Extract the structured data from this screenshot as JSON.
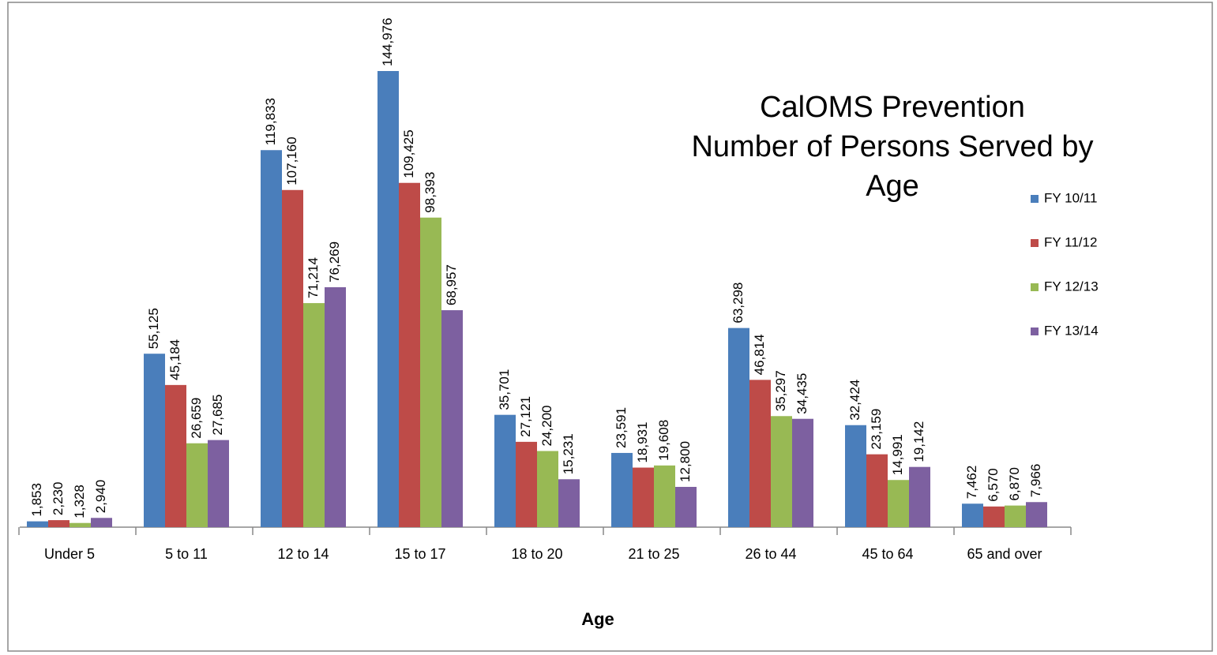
{
  "chart_data": {
    "type": "bar",
    "title": [
      "CalOMS Prevention",
      "Number of Persons Served by",
      "Age"
    ],
    "x_label": "Age",
    "categories": [
      "Under 5",
      "5 to 11",
      "12 to 14",
      "15 to 17",
      "18 to 20",
      "21 to 25",
      "26 to 44",
      "45 to 64",
      "65 and over"
    ],
    "legend": "right",
    "series": [
      {
        "name": "FY 10/11",
        "color": "#4a7ebb",
        "values": [
          1853,
          55125,
          119833,
          144976,
          35701,
          23591,
          63298,
          32424,
          7462
        ],
        "value_labels": [
          "1,853",
          "55,125",
          "119,833",
          "144,976",
          "35,701",
          "23,591",
          "63,298",
          "32,424",
          "7,462"
        ]
      },
      {
        "name": "FY 11/12",
        "color": "#be4b48",
        "values": [
          2230,
          45184,
          107160,
          109425,
          27121,
          18931,
          46814,
          23159,
          6570
        ],
        "value_labels": [
          "2,230",
          "45,184",
          "107,160",
          "109,425",
          "27,121",
          "18,931",
          "46,814",
          "23,159",
          "6,570"
        ]
      },
      {
        "name": "FY 12/13",
        "color": "#98b954",
        "values": [
          1328,
          26659,
          71214,
          98393,
          24200,
          19608,
          35297,
          14991,
          6870
        ],
        "value_labels": [
          "1,328",
          "26,659",
          "71,214",
          "98,393",
          "24,200",
          "19,608",
          "35,297",
          "14,991",
          "6,870"
        ]
      },
      {
        "name": "FY 13/14",
        "color": "#7d60a0",
        "values": [
          2940,
          27685,
          76269,
          68957,
          15231,
          12800,
          34435,
          19142,
          7966
        ],
        "value_labels": [
          "2,940",
          "27,685",
          "76,269",
          "68,957",
          "15,231",
          "12,800",
          "34,435",
          "19,142",
          "7,966"
        ]
      }
    ]
  }
}
